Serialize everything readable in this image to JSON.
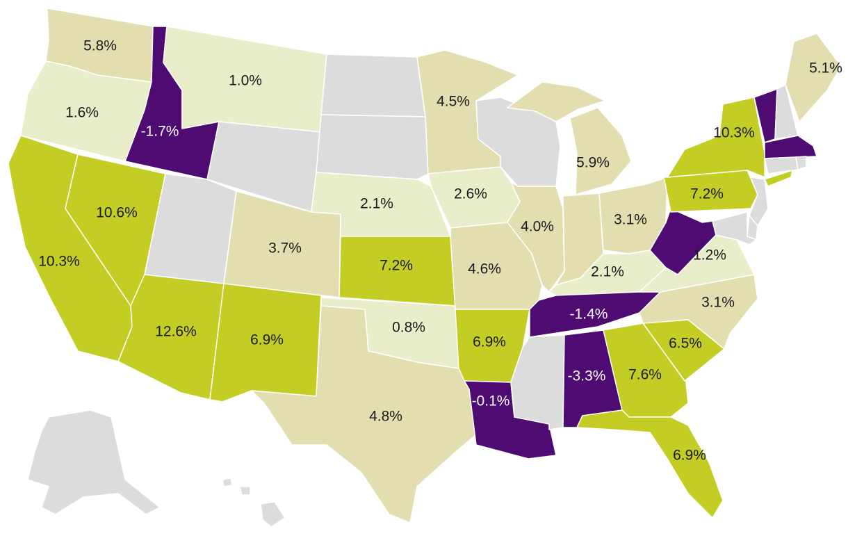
{
  "colors": {
    "high": "#c3cd24",
    "mid": "#e2deb0",
    "low": "#e9edc9",
    "negative": "#4e0b72",
    "no_data": "#dcdcdc",
    "text_dark": "#1a1a1a",
    "text_light": "#ffffff"
  },
  "states": [
    {
      "id": "WA",
      "value": "5.8%",
      "cls": "mid"
    },
    {
      "id": "OR",
      "value": "1.6%",
      "cls": "low"
    },
    {
      "id": "CA",
      "value": "10.3%",
      "cls": "high"
    },
    {
      "id": "NV",
      "value": "10.6%",
      "cls": "high"
    },
    {
      "id": "ID",
      "value": "-1.7%",
      "cls": "negative"
    },
    {
      "id": "MT",
      "value": "1.0%",
      "cls": "low"
    },
    {
      "id": "WY",
      "value": "",
      "cls": "no_data"
    },
    {
      "id": "UT",
      "value": "",
      "cls": "no_data"
    },
    {
      "id": "AZ",
      "value": "12.6%",
      "cls": "high"
    },
    {
      "id": "CO",
      "value": "3.7%",
      "cls": "mid"
    },
    {
      "id": "NM",
      "value": "6.9%",
      "cls": "high"
    },
    {
      "id": "ND",
      "value": "",
      "cls": "no_data"
    },
    {
      "id": "SD",
      "value": "",
      "cls": "no_data"
    },
    {
      "id": "NE",
      "value": "2.1%",
      "cls": "low"
    },
    {
      "id": "KS",
      "value": "7.2%",
      "cls": "high"
    },
    {
      "id": "OK",
      "value": "0.8%",
      "cls": "low"
    },
    {
      "id": "TX",
      "value": "4.8%",
      "cls": "mid"
    },
    {
      "id": "MN",
      "value": "4.5%",
      "cls": "mid"
    },
    {
      "id": "IA",
      "value": "2.6%",
      "cls": "low"
    },
    {
      "id": "MO",
      "value": "4.6%",
      "cls": "mid"
    },
    {
      "id": "AR",
      "value": "6.9%",
      "cls": "high"
    },
    {
      "id": "LA",
      "value": "-0.1%",
      "cls": "negative"
    },
    {
      "id": "WI",
      "value": "",
      "cls": "no_data"
    },
    {
      "id": "IL",
      "value": "4.0%",
      "cls": "mid"
    },
    {
      "id": "MI",
      "value": "5.9%",
      "cls": "mid"
    },
    {
      "id": "IN",
      "value": "",
      "cls": "mid"
    },
    {
      "id": "OH",
      "value": "3.1%",
      "cls": "mid"
    },
    {
      "id": "KY",
      "value": "2.1%",
      "cls": "low"
    },
    {
      "id": "TN",
      "value": "-1.4%",
      "cls": "negative"
    },
    {
      "id": "MS",
      "value": "",
      "cls": "no_data"
    },
    {
      "id": "AL",
      "value": "-3.3%",
      "cls": "negative"
    },
    {
      "id": "GA",
      "value": "7.6%",
      "cls": "high"
    },
    {
      "id": "FL",
      "value": "6.9%",
      "cls": "high"
    },
    {
      "id": "SC",
      "value": "6.5%",
      "cls": "high"
    },
    {
      "id": "NC",
      "value": "3.1%",
      "cls": "mid"
    },
    {
      "id": "VA",
      "value": "1.2%",
      "cls": "low"
    },
    {
      "id": "WV",
      "value": "",
      "cls": "negative"
    },
    {
      "id": "PA",
      "value": "7.2%",
      "cls": "high"
    },
    {
      "id": "NY",
      "value": "10.3%",
      "cls": "high"
    },
    {
      "id": "VT",
      "value": "",
      "cls": "negative"
    },
    {
      "id": "NH",
      "value": "",
      "cls": "no_data"
    },
    {
      "id": "ME",
      "value": "5.1%",
      "cls": "mid"
    },
    {
      "id": "MA",
      "value": "",
      "cls": "negative"
    },
    {
      "id": "CT",
      "value": "",
      "cls": "no_data"
    },
    {
      "id": "RI",
      "value": "",
      "cls": "no_data"
    },
    {
      "id": "NJ",
      "value": "",
      "cls": "no_data"
    },
    {
      "id": "DE",
      "value": "",
      "cls": "no_data"
    },
    {
      "id": "MD",
      "value": "",
      "cls": "no_data"
    },
    {
      "id": "AK",
      "value": "",
      "cls": "no_data"
    },
    {
      "id": "HI",
      "value": "",
      "cls": "no_data"
    }
  ]
}
